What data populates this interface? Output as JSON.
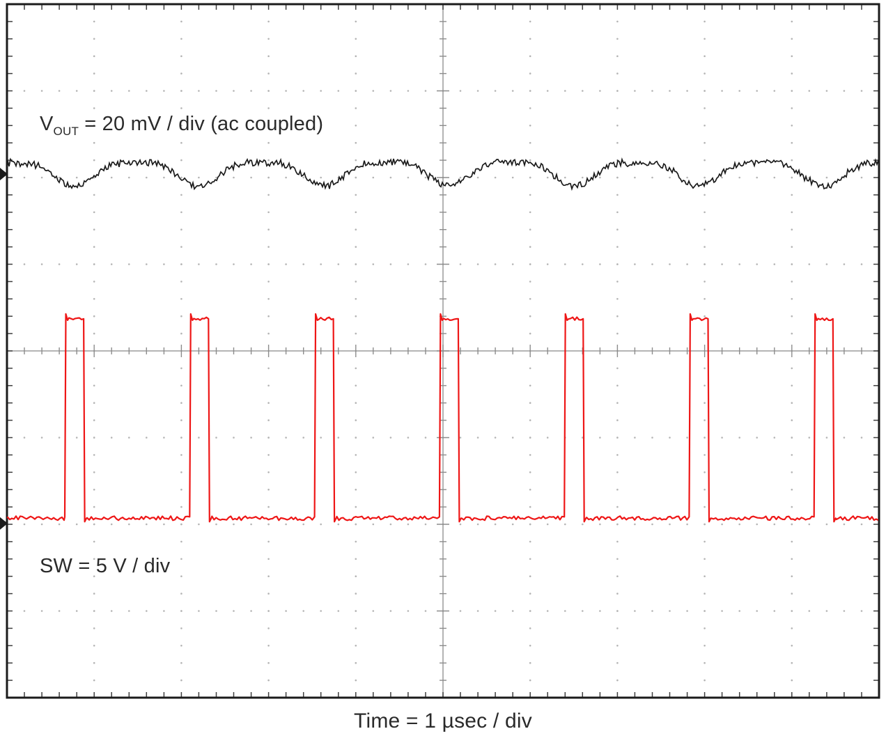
{
  "labels": {
    "vout": {
      "prefix": "V",
      "sub": "OUT",
      "rest": " = 20 mV / div (ac coupled)"
    },
    "sw": "SW = 5 V / div",
    "time": "Time = 1 µsec / div"
  },
  "colors": {
    "background": "#ffffff",
    "border": "#1b1b1b",
    "grid_dots": "#b4b4b4",
    "grid_lines": "#9c9c9c",
    "grid_ticks": "#8c8c8c",
    "border_ticks": "#3f3f3f",
    "text": "#2a2a2a"
  },
  "chart_data": {
    "type": "line",
    "subtype": "oscilloscope",
    "xlabel": "Time = 1 µsec / div",
    "x_divisions": 10,
    "y_divisions": 8,
    "x_units_per_div": "1 µs",
    "grid": "dotted with center crosshair ticks",
    "legend_position": "inline-annotations",
    "series": [
      {
        "name": "VOUT",
        "label": "V_OUT = 20 mV / div (ac coupled)",
        "coupling": "ac",
        "scale_mV_per_div": 20,
        "waveform": "ripple",
        "color": "#1b1b1b",
        "crest_div_from_top": 1.83,
        "valley_div_from_top": 2.1,
        "estimated_ripple_pp_mV": 5.4,
        "ripple_period_us": 1.432,
        "marker_div_from_top": 1.96,
        "noise_pp_div": 0.07
      },
      {
        "name": "SW",
        "label": "SW = 5 V / div",
        "scale_V_per_div": 5,
        "waveform": "pulse",
        "color": "#ee1616",
        "low_div_from_top": 5.93,
        "high_div_from_top": 3.63,
        "estimated_low_V": 0,
        "estimated_high_V": 11.5,
        "period_div": 1.432,
        "period_us": 1.432,
        "estimated_frequency_MHz": 0.7,
        "pulse_width_div": 0.216,
        "duty_pct": 15,
        "first_rise_div": 0.663,
        "pulse_count_visible": 7,
        "marker_div_from_top": 5.99,
        "noise_pp_div": 0.05
      }
    ]
  }
}
